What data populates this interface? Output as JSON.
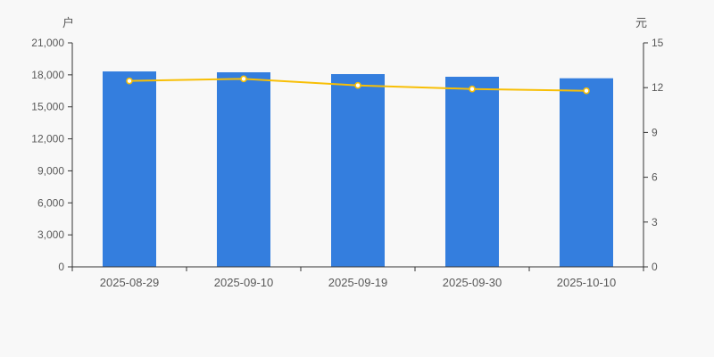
{
  "chart_data": {
    "type": "bar+line-dual-axis",
    "categories": [
      "2025-08-29",
      "2025-09-10",
      "2025-09-19",
      "2025-09-30",
      "2025-10-10"
    ],
    "series": [
      {
        "name": "bar-series",
        "type": "bar",
        "axis": "left",
        "values": [
          18320,
          18240,
          18070,
          17820,
          17680
        ],
        "color": "#347ede"
      },
      {
        "name": "line-series",
        "type": "line",
        "axis": "right",
        "values": [
          12.45,
          12.59,
          12.15,
          11.91,
          11.79
        ],
        "color": "#f8bf06",
        "point_fill": "#ffffff"
      }
    ],
    "left_axis": {
      "name": "户",
      "min": 0,
      "max": 21000,
      "ticks": [
        0,
        3000,
        6000,
        9000,
        12000,
        15000,
        18000,
        21000
      ],
      "tick_labels": [
        "0",
        "3,000",
        "6,000",
        "9,000",
        "12,000",
        "15,000",
        "18,000",
        "21,000"
      ]
    },
    "right_axis": {
      "name": "元",
      "min": 0,
      "max": 15,
      "ticks": [
        0,
        3,
        6,
        9,
        12,
        15
      ],
      "tick_labels": [
        "0",
        "3",
        "6",
        "9",
        "12",
        "15"
      ]
    },
    "grid": "off",
    "legend": "none",
    "title": ""
  },
  "colors": {
    "background": "#f8f8f8",
    "axis_line": "#333333",
    "tick_text": "#595959",
    "bar": "#347ede",
    "line": "#f8bf06",
    "point_fill": "#ffffff"
  }
}
